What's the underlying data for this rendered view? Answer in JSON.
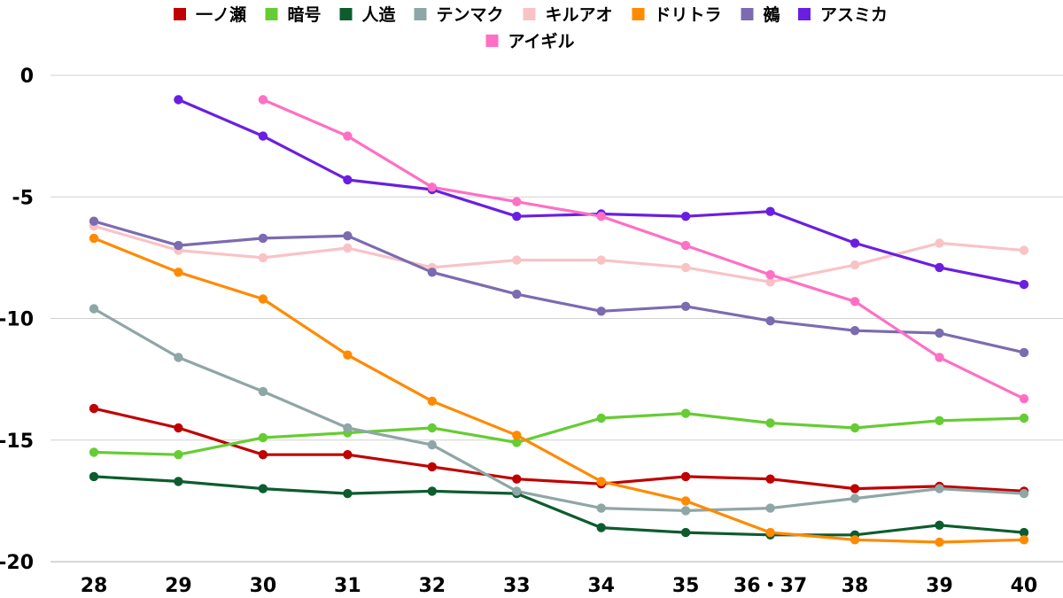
{
  "chart_data": {
    "type": "line",
    "title": "",
    "xlabel": "",
    "ylabel": "",
    "categories": [
      "28",
      "29",
      "30",
      "31",
      "32",
      "33",
      "34",
      "35",
      "36・37",
      "38",
      "39",
      "40"
    ],
    "ylim": [
      -20,
      0
    ],
    "yticks": [
      "0",
      "-5",
      "-10",
      "-15",
      "-20"
    ],
    "grid": true,
    "legend_position": "top",
    "series": [
      {
        "name": "一ノ瀬",
        "color": "#c00000",
        "values": [
          -13.7,
          -14.5,
          -15.6,
          -15.6,
          -16.1,
          -16.6,
          -16.8,
          -16.5,
          -16.6,
          -17.0,
          -16.9,
          -17.1
        ]
      },
      {
        "name": "暗号",
        "color": "#66cc33",
        "values": [
          -15.5,
          -15.6,
          -14.9,
          -14.7,
          -14.5,
          -15.1,
          -14.1,
          -13.9,
          -14.3,
          -14.5,
          -14.2,
          -14.1
        ]
      },
      {
        "name": "人造",
        "color": "#0d5c2e",
        "values": [
          -16.5,
          -16.7,
          -17.0,
          -17.2,
          -17.1,
          -17.2,
          -18.6,
          -18.8,
          -18.9,
          -18.9,
          -18.5,
          -18.8
        ]
      },
      {
        "name": "テンマク",
        "color": "#8fa6a6",
        "values": [
          -9.6,
          -11.6,
          -13.0,
          -14.5,
          -15.2,
          -17.1,
          -17.8,
          -17.9,
          -17.8,
          -17.4,
          -17.0,
          -17.2
        ]
      },
      {
        "name": "キルアオ",
        "color": "#f9c3c6",
        "values": [
          -6.2,
          -7.2,
          -7.5,
          -7.1,
          -7.9,
          -7.6,
          -7.6,
          -7.9,
          -8.5,
          -7.8,
          -6.9,
          -7.2
        ]
      },
      {
        "name": "ドリトラ",
        "color": "#ff8a00",
        "values": [
          -6.7,
          -8.1,
          -9.2,
          -11.5,
          -13.4,
          -14.8,
          -16.7,
          -17.5,
          -18.8,
          -19.1,
          -19.2,
          -19.1
        ]
      },
      {
        "name": "鵺",
        "color": "#7c6bb0",
        "values": [
          -6.0,
          -7.0,
          -6.7,
          -6.6,
          -8.1,
          -9.0,
          -9.7,
          -9.5,
          -10.1,
          -10.5,
          -10.6,
          -11.4
        ]
      },
      {
        "name": "アスミカ",
        "color": "#6a1fe0",
        "values": [
          null,
          -1.0,
          -2.5,
          -4.3,
          -4.7,
          -5.8,
          -5.7,
          -5.8,
          -5.6,
          -6.9,
          -7.9,
          -8.6
        ]
      },
      {
        "name": "アイギル",
        "color": "#ff6fc4",
        "values": [
          null,
          null,
          -1.0,
          -2.5,
          -4.6,
          -5.2,
          -5.8,
          -7.0,
          -8.2,
          -9.3,
          -11.6,
          -13.3
        ]
      }
    ]
  }
}
